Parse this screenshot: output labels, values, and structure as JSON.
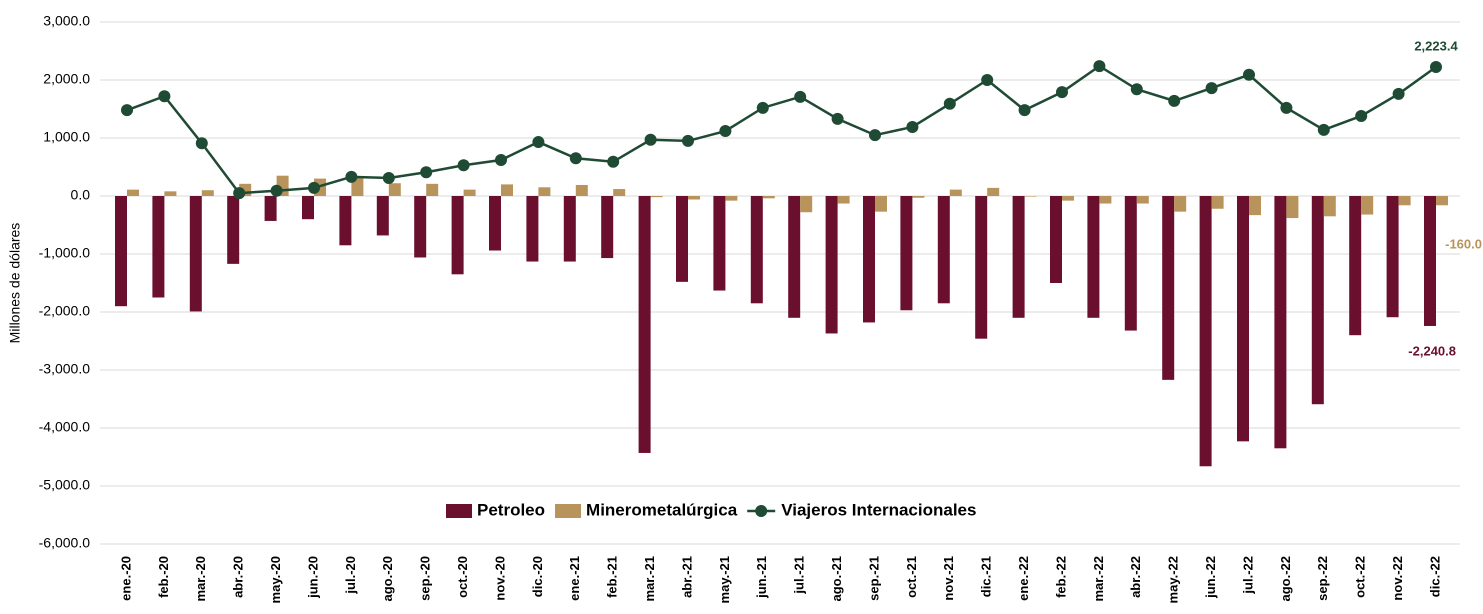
{
  "chart_data": {
    "type": "bar-line",
    "y_axis_label": "Millones de dólares",
    "categories": [
      "ene.-20",
      "feb.-20",
      "mar.-20",
      "abr.-20",
      "may.-20",
      "jun.-20",
      "jul.-20",
      "ago.-20",
      "sep.-20",
      "oct.-20",
      "nov.-20",
      "dic.-20",
      "ene.-21",
      "feb.-21",
      "mar.-21",
      "abr.-21",
      "may.-21",
      "jun.-21",
      "jul.-21",
      "ago.-21",
      "sep.-21",
      "oct.-21",
      "nov.-21",
      "dic.-21",
      "ene.-22",
      "feb.-22",
      "mar.-22",
      "abr.-22",
      "may.-22",
      "jun.-22",
      "jul.-22",
      "ago.-22",
      "sep.-22",
      "oct.-22",
      "nov.-22",
      "dic.-22"
    ],
    "series": [
      {
        "name": "Petroleo",
        "type": "bar",
        "color": "#6b0f2e",
        "values": [
          -1900,
          -1750,
          -1990,
          -1170,
          -430,
          -400,
          -850,
          -680,
          -1060,
          -1350,
          -940,
          -1130,
          -1130,
          -1070,
          -4430,
          -1480,
          -1630,
          -1850,
          -2100,
          -2370,
          -2180,
          -1970,
          -1850,
          -2460,
          -2100,
          -1500,
          -2100,
          -2320,
          -3170,
          -4660,
          -4230,
          -4350,
          -3590,
          -2400,
          -2090,
          -2240.8
        ],
        "value_labels": [
          null,
          null,
          null,
          null,
          null,
          null,
          null,
          null,
          null,
          null,
          null,
          null,
          null,
          null,
          null,
          null,
          null,
          null,
          null,
          null,
          null,
          null,
          null,
          null,
          null,
          null,
          null,
          null,
          null,
          null,
          null,
          null,
          null,
          null,
          null,
          "-2,240.8"
        ]
      },
      {
        "name": "Minerometalúrgica",
        "type": "bar",
        "color": "#b8945c",
        "values": [
          110,
          80,
          100,
          210,
          350,
          300,
          320,
          220,
          210,
          110,
          200,
          150,
          190,
          120,
          -20,
          -60,
          -80,
          -40,
          -280,
          -130,
          -270,
          -30,
          110,
          140,
          -10,
          -80,
          -130,
          -130,
          -270,
          -220,
          -330,
          -380,
          -350,
          -320,
          -160,
          -160.0
        ],
        "value_labels": [
          null,
          null,
          null,
          null,
          null,
          null,
          null,
          null,
          null,
          null,
          null,
          null,
          null,
          null,
          null,
          null,
          null,
          null,
          null,
          null,
          null,
          null,
          null,
          null,
          null,
          null,
          null,
          null,
          null,
          null,
          null,
          null,
          null,
          null,
          null,
          "-160.0"
        ]
      },
      {
        "name": "Viajeros Internacionales",
        "type": "line",
        "color": "#1f4a34",
        "values": [
          1480,
          1720,
          910,
          50,
          90,
          140,
          330,
          310,
          410,
          530,
          620,
          930,
          650,
          590,
          970,
          950,
          1120,
          1520,
          1710,
          1330,
          1050,
          1190,
          1590,
          2000,
          1480,
          1790,
          2240,
          1840,
          1640,
          1860,
          2090,
          1520,
          1140,
          1380,
          1760,
          2223.4
        ],
        "value_labels": [
          null,
          null,
          null,
          null,
          null,
          null,
          null,
          null,
          null,
          null,
          null,
          null,
          null,
          null,
          null,
          null,
          null,
          null,
          null,
          null,
          null,
          null,
          null,
          null,
          null,
          null,
          null,
          null,
          null,
          null,
          null,
          null,
          null,
          null,
          null,
          "2,223.4"
        ]
      }
    ],
    "ylim": [
      -6000,
      3000
    ],
    "yticks": [
      {
        "value": 3000,
        "label": "3,000.0"
      },
      {
        "value": 2000,
        "label": "2,000.0"
      },
      {
        "value": 1000,
        "label": "1,000.0"
      },
      {
        "value": 0,
        "label": "0.0"
      },
      {
        "value": -1000,
        "label": "-1,000.0"
      },
      {
        "value": -2000,
        "label": "-2,000.0"
      },
      {
        "value": -3000,
        "label": "-3,000.0"
      },
      {
        "value": -4000,
        "label": "-4,000.0"
      },
      {
        "value": -5000,
        "label": "-5,000.0"
      },
      {
        "value": -6000,
        "label": "-6,000.0"
      }
    ],
    "grid": true,
    "legend": "bottom"
  }
}
